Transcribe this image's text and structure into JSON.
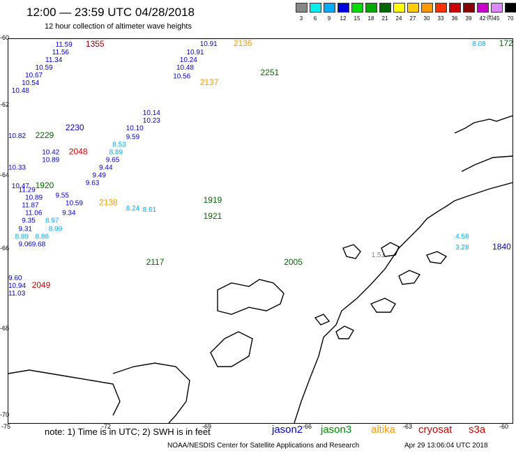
{
  "header": {
    "title": "12:00 — 23:59 UTC 04/28/2018",
    "subtitle": "12 hour collection of altimeter wave heights"
  },
  "color_scale": {
    "labels": [
      "3",
      "6",
      "9",
      "12",
      "15",
      "18",
      "21",
      "24",
      "27",
      "30",
      "33",
      "36",
      "39",
      "42",
      "45",
      "70"
    ],
    "unit": "(ft)",
    "colors": [
      "#888888",
      "#00eeee",
      "#00aaff",
      "#0000dd",
      "#00dd00",
      "#00aa00",
      "#006600",
      "#ffff00",
      "#ffcc00",
      "#ff9900",
      "#ff3300",
      "#cc0000",
      "#880000",
      "#cc00cc",
      "#dd88ff",
      "#000000"
    ]
  },
  "axes": {
    "lat_labels": [
      "-60",
      "-62",
      "-64",
      "-66",
      "-68",
      "-70"
    ],
    "lon_labels": [
      "-75",
      "-72",
      "-69",
      "-66",
      "-63",
      "-60"
    ]
  },
  "notes": "note: 1) Time is in UTC; 2) SWH is in feet",
  "legend": [
    {
      "name": "jason2",
      "color": "#0000cc"
    },
    {
      "name": "jason3",
      "color": "#008800"
    },
    {
      "name": "altika",
      "color": "#ff9900"
    },
    {
      "name": "cryosat",
      "color": "#cc0000"
    },
    {
      "name": "s3a",
      "color": "#cc0000"
    }
  ],
  "footer": {
    "credit": "NOAA/NESDIS Center for Satellite Applications and Research",
    "timestamp": "Apr 29 13:06:04 UTC 2018"
  },
  "map_labels": [
    {
      "t": "11.59",
      "lon": -73.6,
      "lat": -60.02,
      "c": "#0000cc"
    },
    {
      "t": "1355",
      "lon": -72.7,
      "lat": -60.02,
      "c": "#880000"
    },
    {
      "t": "11.56",
      "lon": -73.7,
      "lat": -60.22,
      "c": "#0000cc"
    },
    {
      "t": "11.34",
      "lon": -73.9,
      "lat": -60.42,
      "c": "#0000cc"
    },
    {
      "t": "10.59",
      "lon": -74.2,
      "lat": -60.62,
      "c": "#0000cc"
    },
    {
      "t": "10.67",
      "lon": -74.5,
      "lat": -60.82,
      "c": "#0000cc"
    },
    {
      "t": "10.54",
      "lon": -74.6,
      "lat": -61.02,
      "c": "#0000cc"
    },
    {
      "t": "10.48",
      "lon": -74.9,
      "lat": -61.22,
      "c": "#0000cc"
    },
    {
      "t": "10.91",
      "lon": -69.3,
      "lat": -60.0,
      "c": "#0000cc"
    },
    {
      "t": "2136",
      "lon": -68.3,
      "lat": -60.0,
      "c": "#ff9900"
    },
    {
      "t": "10.91",
      "lon": -69.7,
      "lat": -60.22,
      "c": "#0000cc"
    },
    {
      "t": "10.24",
      "lon": -69.9,
      "lat": -60.42,
      "c": "#0000cc"
    },
    {
      "t": "10.48",
      "lon": -70.0,
      "lat": -60.62,
      "c": "#0000cc"
    },
    {
      "t": "10.56",
      "lon": -70.1,
      "lat": -60.84,
      "c": "#0000cc"
    },
    {
      "t": "2251",
      "lon": -67.5,
      "lat": -60.76,
      "c": "#006600"
    },
    {
      "t": "2137",
      "lon": -69.3,
      "lat": -61.02,
      "c": "#ff9900"
    },
    {
      "t": "10.14",
      "lon": -71.0,
      "lat": -61.8,
      "c": "#0000cc"
    },
    {
      "t": "10.23",
      "lon": -71.0,
      "lat": -62.0,
      "c": "#0000cc"
    },
    {
      "t": "10.10",
      "lon": -71.5,
      "lat": -62.2,
      "c": "#0000cc"
    },
    {
      "t": "9.59",
      "lon": -71.5,
      "lat": -62.42,
      "c": "#0000cc"
    },
    {
      "t": "8.53",
      "lon": -71.9,
      "lat": -62.62,
      "c": "#00aaff"
    },
    {
      "t": "8.89",
      "lon": -72.0,
      "lat": -62.82,
      "c": "#00aaff"
    },
    {
      "t": "9.65",
      "lon": -72.1,
      "lat": -63.02,
      "c": "#0000cc"
    },
    {
      "t": "9.44",
      "lon": -72.3,
      "lat": -63.22,
      "c": "#0000cc"
    },
    {
      "t": "9.49",
      "lon": -72.5,
      "lat": -63.42,
      "c": "#0000cc"
    },
    {
      "t": "9.63",
      "lon": -72.7,
      "lat": -63.62,
      "c": "#0000cc"
    },
    {
      "t": "10.82",
      "lon": -75.0,
      "lat": -62.4,
      "c": "#0000cc"
    },
    {
      "t": "2229",
      "lon": -74.2,
      "lat": -62.4,
      "c": "#006600"
    },
    {
      "t": "2230",
      "lon": -73.3,
      "lat": -62.2,
      "c": "#0000cc"
    },
    {
      "t": "10.42",
      "lon": -74.0,
      "lat": -62.82,
      "c": "#0000cc"
    },
    {
      "t": "2048",
      "lon": -73.2,
      "lat": -62.82,
      "c": "#cc0000"
    },
    {
      "t": "10.89",
      "lon": -74.0,
      "lat": -63.02,
      "c": "#0000cc"
    },
    {
      "t": "10.33",
      "lon": -75.0,
      "lat": -63.22,
      "c": "#0000cc"
    },
    {
      "t": "1920",
      "lon": -74.2,
      "lat": -63.7,
      "c": "#006600"
    },
    {
      "t": "10.47",
      "lon": -74.9,
      "lat": -63.7,
      "c": "#0000cc"
    },
    {
      "t": "11.29",
      "lon": -74.7,
      "lat": -63.8,
      "c": "#0000cc"
    },
    {
      "t": "10.89",
      "lon": -74.5,
      "lat": -64.0,
      "c": "#0000cc"
    },
    {
      "t": "9.55",
      "lon": -73.6,
      "lat": -63.95,
      "c": "#0000cc"
    },
    {
      "t": "10.59",
      "lon": -73.3,
      "lat": -64.15,
      "c": "#0000cc"
    },
    {
      "t": "2138",
      "lon": -72.3,
      "lat": -64.15,
      "c": "#ff9900"
    },
    {
      "t": "11.87",
      "lon": -74.6,
      "lat": -64.2,
      "c": "#0000cc"
    },
    {
      "t": "9.34",
      "lon": -73.4,
      "lat": -64.4,
      "c": "#0000cc"
    },
    {
      "t": "11.06",
      "lon": -74.5,
      "lat": -64.4,
      "c": "#0000cc"
    },
    {
      "t": "8.97",
      "lon": -73.9,
      "lat": -64.6,
      "c": "#00aaff"
    },
    {
      "t": "9.35",
      "lon": -74.6,
      "lat": -64.6,
      "c": "#0000cc"
    },
    {
      "t": "8.99",
      "lon": -73.8,
      "lat": -64.82,
      "c": "#00aaff"
    },
    {
      "t": "9.31",
      "lon": -74.7,
      "lat": -64.82,
      "c": "#0000cc"
    },
    {
      "t": "8.86",
      "lon": -74.2,
      "lat": -65.02,
      "c": "#00aaff"
    },
    {
      "t": "8.89",
      "lon": -74.8,
      "lat": -65.02,
      "c": "#00aaff"
    },
    {
      "t": "9.06",
      "lon": -74.7,
      "lat": -65.22,
      "c": "#0000cc"
    },
    {
      "t": "9.68",
      "lon": -74.3,
      "lat": -65.22,
      "c": "#0000cc"
    },
    {
      "t": "1921",
      "lon": -69.2,
      "lat": -64.5,
      "c": "#006600"
    },
    {
      "t": "1919",
      "lon": -69.2,
      "lat": -64.08,
      "c": "#006600"
    },
    {
      "t": "8.24",
      "lon": -71.5,
      "lat": -64.28,
      "c": "#00aaff"
    },
    {
      "t": "8.61",
      "lon": -71.0,
      "lat": -64.32,
      "c": "#00aaff"
    },
    {
      "t": "1.51",
      "lon": -64.2,
      "lat": -65.5,
      "c": "#888888"
    },
    {
      "t": "2005",
      "lon": -66.8,
      "lat": -65.7,
      "c": "#006600"
    },
    {
      "t": "4.58",
      "lon": -61.7,
      "lat": -65.02,
      "c": "#00aaff"
    },
    {
      "t": "3.28",
      "lon": -61.7,
      "lat": -65.3,
      "c": "#00aaff"
    },
    {
      "t": "1840",
      "lon": -60.6,
      "lat": -65.3,
      "c": "#0000cc"
    },
    {
      "t": "8.08",
      "lon": -61.2,
      "lat": -60.0,
      "c": "#00aaff"
    },
    {
      "t": "172",
      "lon": -60.4,
      "lat": -60.0,
      "c": "#006600"
    },
    {
      "t": "10.94",
      "lon": -75.0,
      "lat": -66.3,
      "c": "#0000cc"
    },
    {
      "t": "2049",
      "lon": -74.3,
      "lat": -66.3,
      "c": "#cc0000"
    },
    {
      "t": "11.03",
      "lon": -75.0,
      "lat": -66.5,
      "c": "#0000cc"
    },
    {
      "t": "9.60",
      "lon": -75.0,
      "lat": -66.1,
      "c": "#0000cc"
    },
    {
      "t": "2117",
      "lon": -70.9,
      "lat": -65.7,
      "c": "#006600"
    }
  ]
}
